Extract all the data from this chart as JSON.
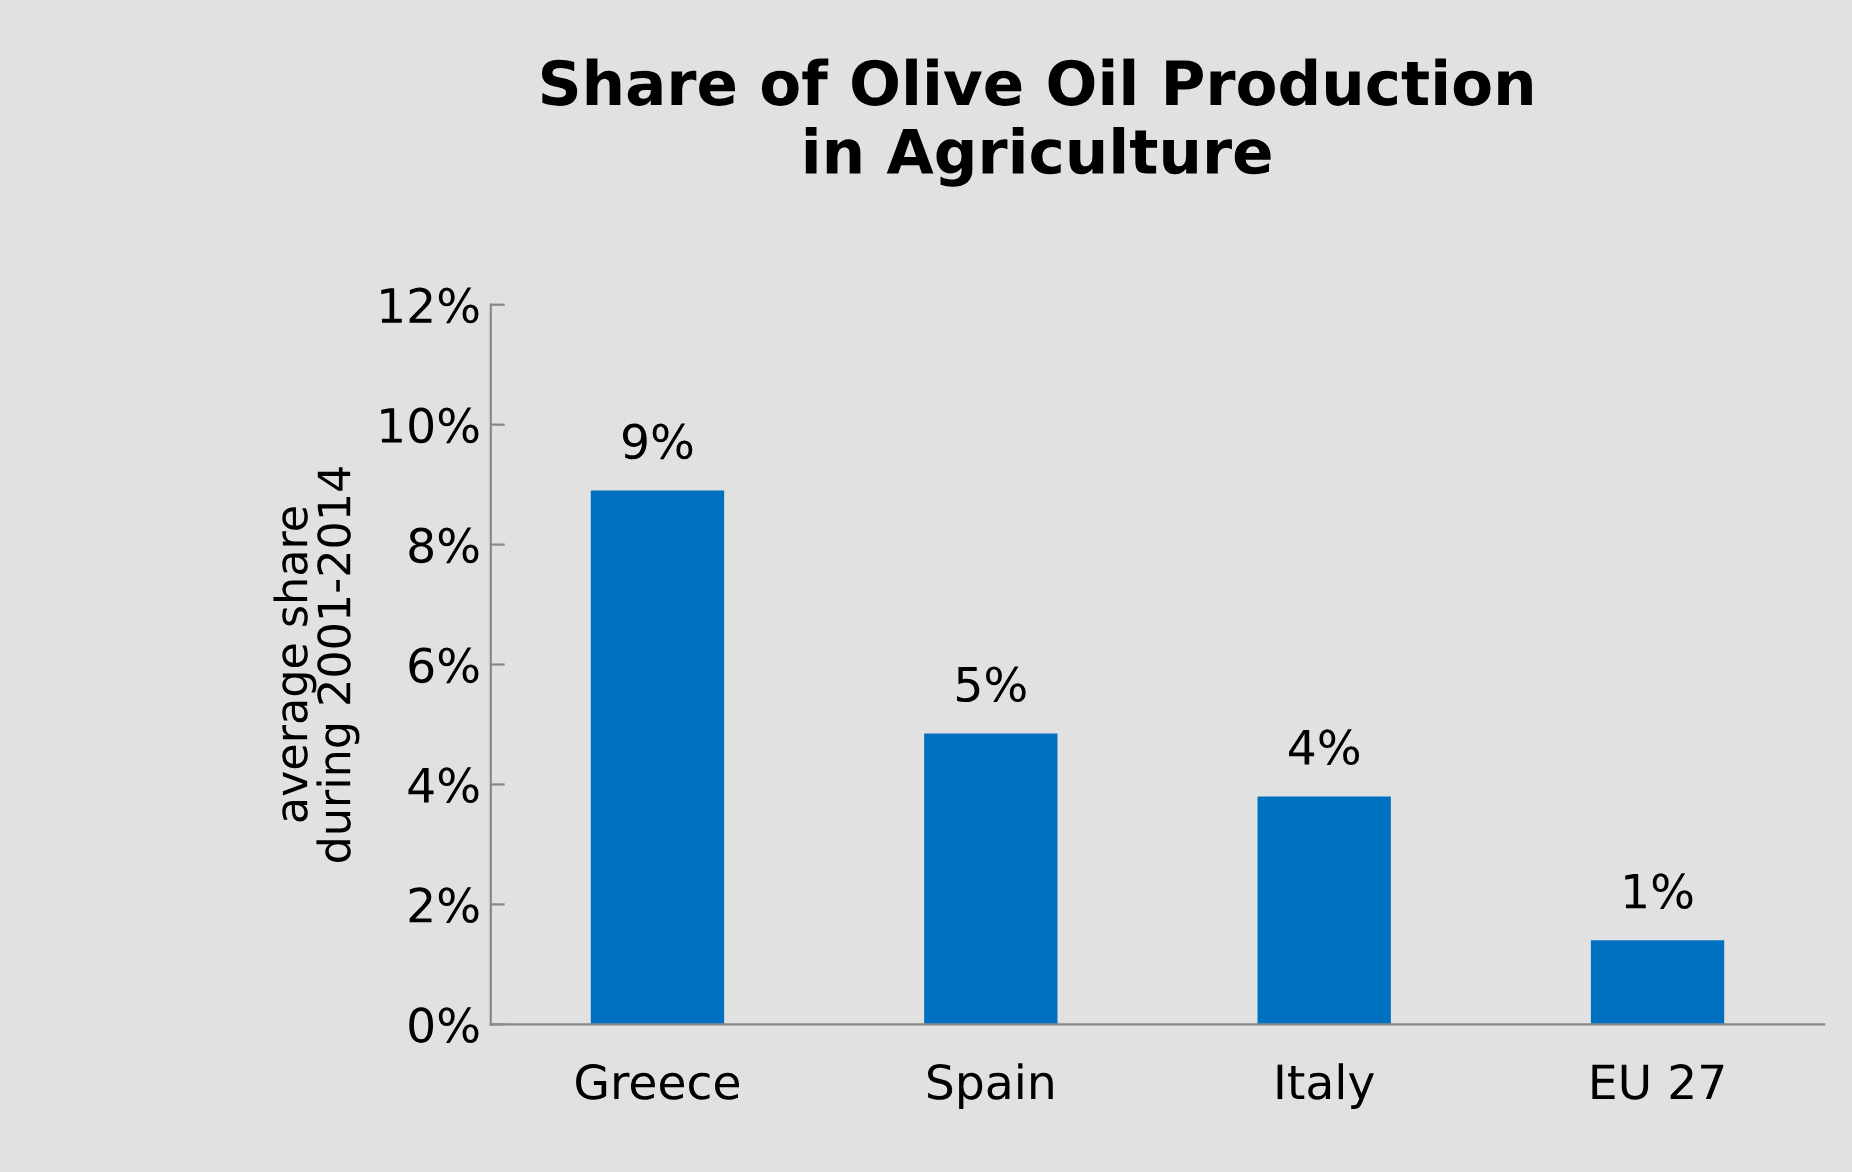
{
  "chart_data": {
    "type": "bar",
    "title": "Share of Olive Oil Production\nin Agriculture",
    "ylabel": "average share\nduring 2001-2014",
    "categories": [
      "Greece",
      "Spain",
      "Italy",
      "EU 27"
    ],
    "values": [
      8.9,
      4.85,
      3.8,
      1.4
    ],
    "color": "#0070c0",
    "value_labels": [
      "9%",
      "5%",
      "4%",
      "1%"
    ],
    "ylim": [
      0,
      12
    ],
    "yticks": [
      {
        "value": 0,
        "label": "0%"
      },
      {
        "value": 2,
        "label": "2%"
      },
      {
        "value": 4,
        "label": "4%"
      },
      {
        "value": 6,
        "label": "6%"
      },
      {
        "value": 8,
        "label": "8%"
      },
      {
        "value": 10,
        "label": "10%"
      },
      {
        "value": 12,
        "label": "12%"
      }
    ],
    "grid": false,
    "legend": false
  }
}
